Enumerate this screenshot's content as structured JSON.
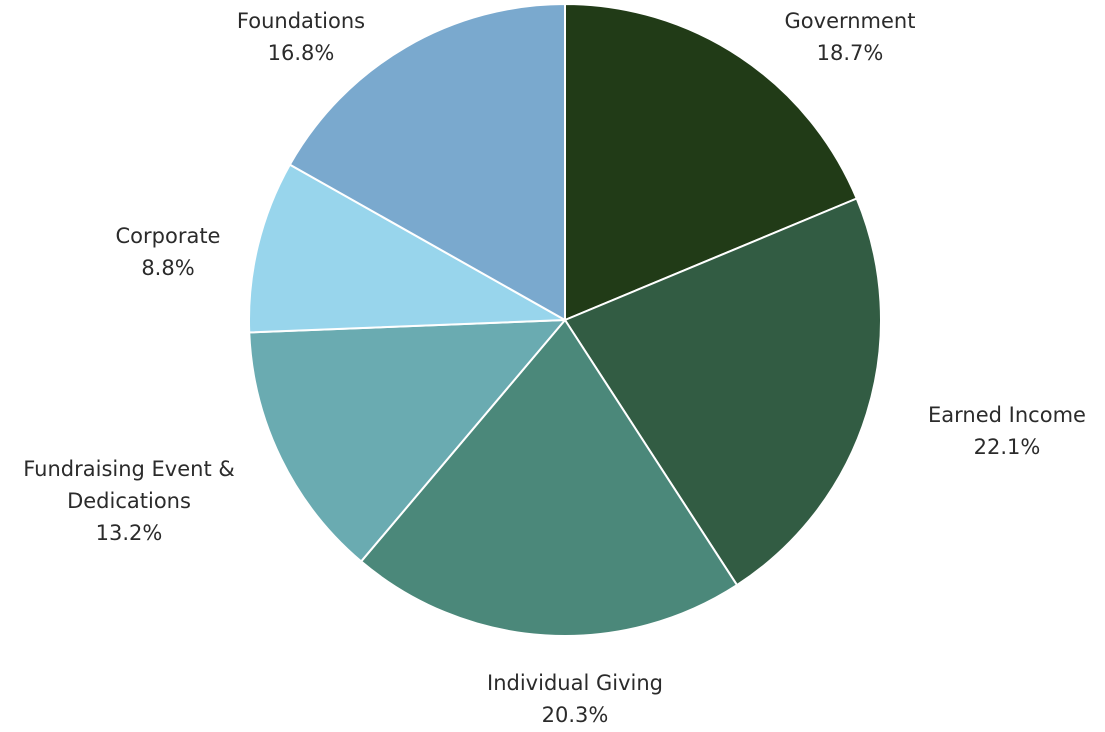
{
  "chart_data": {
    "type": "pie",
    "start_angle_deg": 0,
    "direction": "clockwise",
    "slices": [
      {
        "label": [
          "Government"
        ],
        "pct": "18.7%",
        "value": 18.7,
        "color": "#213b17"
      },
      {
        "label": [
          "Earned Income"
        ],
        "pct": "22.1%",
        "value": 22.1,
        "color": "#325c43"
      },
      {
        "label": [
          "Individual Giving"
        ],
        "pct": "20.3%",
        "value": 20.3,
        "color": "#4b887a"
      },
      {
        "label": [
          "Fundraising Event &",
          "Dedications"
        ],
        "pct": "13.2%",
        "value": 13.2,
        "color": "#6aabb1"
      },
      {
        "label": [
          "Corporate"
        ],
        "pct": "8.8%",
        "value": 8.8,
        "color": "#98d5ec"
      },
      {
        "label": [
          "Foundations"
        ],
        "pct": "16.8%",
        "value": 16.8,
        "color": "#7aa9ce"
      }
    ]
  }
}
